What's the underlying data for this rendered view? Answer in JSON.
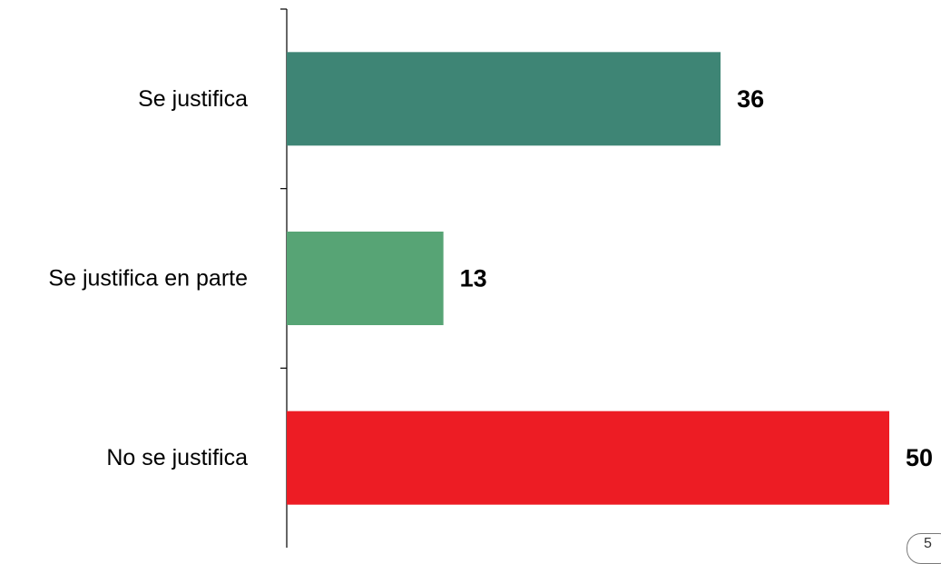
{
  "chart_data": {
    "type": "bar",
    "orientation": "horizontal",
    "title": "",
    "xlabel": "",
    "ylabel": "",
    "categories": [
      "Se justifica",
      "Se justifica en parte",
      "No se justifica"
    ],
    "values": [
      36,
      13,
      50
    ],
    "colors": [
      "#3e8575",
      "#57a475",
      "#ed1c24"
    ],
    "xlim": [
      0,
      50
    ],
    "grid": false,
    "legend": "none",
    "data_labels": true
  },
  "page_badge": "5"
}
